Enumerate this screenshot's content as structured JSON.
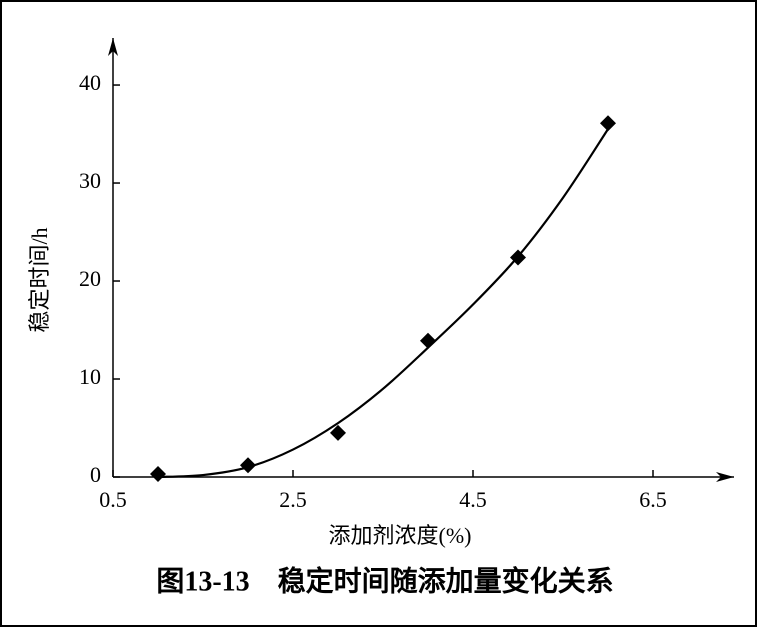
{
  "chart_data": {
    "type": "scatter",
    "x_label": "添加剂浓度(%)",
    "y_label": "稳定时间/h",
    "caption": "图13-13　稳定时间随添加量变化关系",
    "x": [
      1,
      2,
      3,
      4,
      5,
      6
    ],
    "values": [
      0.3,
      1.2,
      4.5,
      13.9,
      22.4,
      36.1
    ],
    "color": "#000000",
    "fit": {
      "x": [
        1,
        1.5,
        2,
        2.5,
        3,
        3.5,
        4,
        4.5,
        5,
        5.5,
        6
      ],
      "values": [
        0,
        0.2,
        1,
        2.8,
        5.5,
        9,
        13.2,
        17.6,
        22.5,
        28.5,
        35.5
      ]
    },
    "xlim": [
      0.5,
      7.4
    ],
    "ylim": [
      0,
      44.8
    ],
    "xticks": [
      0.5,
      2.5,
      4.5,
      6.5
    ],
    "yticks": [
      0,
      10,
      20,
      30,
      40
    ]
  }
}
